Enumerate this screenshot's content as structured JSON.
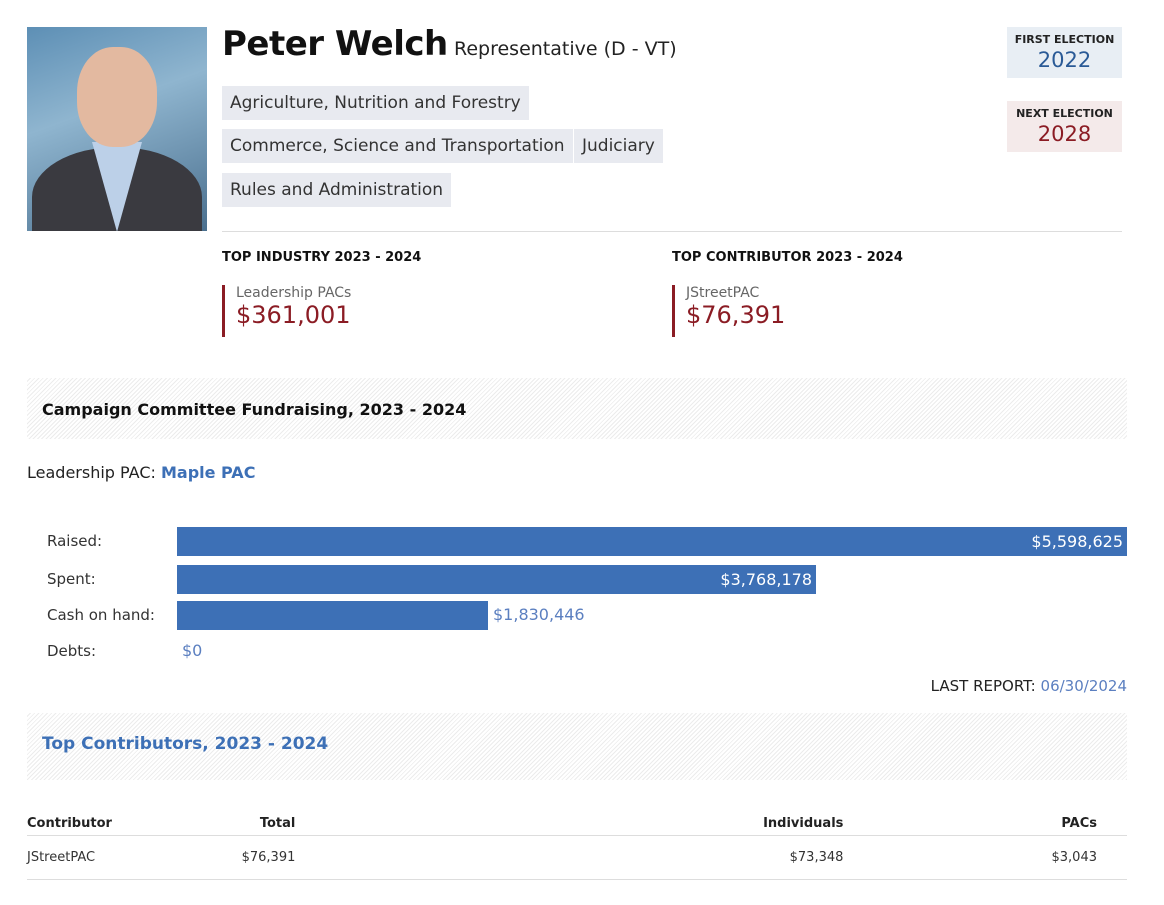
{
  "profile": {
    "name": "Peter Welch",
    "role": "Representative (D - VT)",
    "committees": [
      "Agriculture, Nutrition and Forestry",
      "Commerce, Science and Transportation",
      "Judiciary",
      "Rules and Administration"
    ],
    "first_election_label": "FIRST ELECTION",
    "first_election": "2022",
    "next_election_label": "NEXT ELECTION",
    "next_election": "2028"
  },
  "top": {
    "industry_label": "TOP INDUSTRY 2023 - 2024",
    "industry_name": "Leadership PACs",
    "industry_value": "$361,001",
    "contributor_label": "TOP CONTRIBUTOR 2023 - 2024",
    "contributor_name": "JStreetPAC",
    "contributor_value": "$76,391"
  },
  "fundraising": {
    "title": "Campaign Committee Fundraising, 2023 - 2024",
    "pac_label": "Leadership PAC:",
    "pac_name": "Maple PAC",
    "rows": [
      {
        "label": "Raised:",
        "value": "$5,598,625",
        "amount": 5598625
      },
      {
        "label": "Spent:",
        "value": "$3,768,178",
        "amount": 3768178
      },
      {
        "label": "Cash on hand:",
        "value": "$1,830,446",
        "amount": 1830446
      },
      {
        "label": "Debts:",
        "value": "$0",
        "amount": 0
      }
    ],
    "last_report_label": "LAST REPORT:",
    "last_report": "06/30/2024",
    "bar_color": "#3d70b6"
  },
  "contributors": {
    "title": "Top Contributors, 2023 - 2024",
    "headers": [
      "Contributor",
      "Total",
      "Individuals",
      "PACs"
    ],
    "rows": [
      [
        "JStreetPAC",
        "$76,391",
        "$73,348",
        "$3,043"
      ]
    ]
  }
}
